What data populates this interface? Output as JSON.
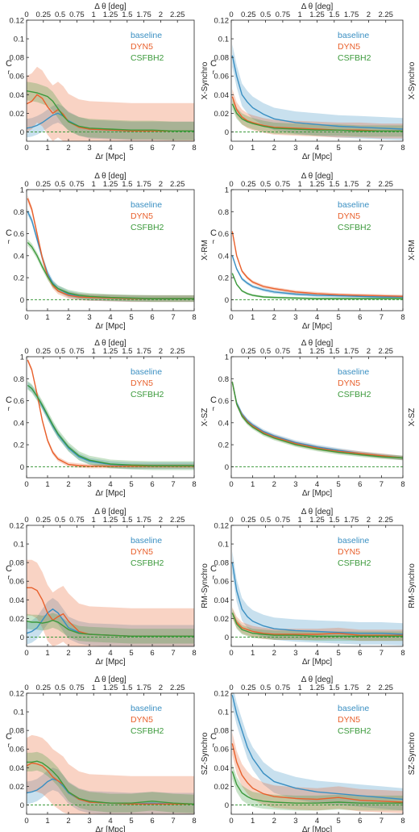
{
  "colors": {
    "baseline": "#3a8fc2",
    "DYN5": "#e8602c",
    "CSFBH2": "#3c9a3c",
    "axis": "#262626",
    "grid_band_alpha": 0.28
  },
  "common": {
    "xlabel": "Δr [Mpc]",
    "top_xlabel": "Δ θ [deg]",
    "ylabel": "C",
    "ylabel_sub": "r",
    "xticks": [
      "0",
      "1",
      "2",
      "3",
      "4",
      "5",
      "6",
      "7",
      "8"
    ],
    "top_ticks": [
      "0",
      "0.25",
      "0.5",
      "0.75",
      "1",
      "1.25",
      "1.5",
      "1.75",
      "2",
      "2.25"
    ],
    "legend": [
      "baseline",
      "DYN5",
      "CSFBH2"
    ]
  },
  "chart_data": [
    {
      "type": "line",
      "panel": "1-left",
      "right_label": "",
      "xlim": [
        0,
        8
      ],
      "ylim": [
        -0.01,
        0.12
      ],
      "yticks": [
        "0",
        "0.02",
        "0.04",
        "0.06",
        "0.08",
        "0.1",
        "0.12"
      ],
      "ytick_values": [
        0,
        0.02,
        0.04,
        0.06,
        0.08,
        0.1,
        0.12
      ],
      "x": [
        0,
        0.25,
        0.5,
        0.75,
        1.0,
        1.25,
        1.5,
        1.75,
        2.0,
        2.5,
        3.0,
        4.0,
        5.0,
        6.0,
        7.0,
        8.0
      ],
      "series": [
        {
          "name": "baseline",
          "values": [
            0.004,
            0.005,
            0.007,
            0.01,
            0.014,
            0.018,
            0.02,
            0.017,
            0.012,
            0.006,
            0.003,
            0.002,
            0.001,
            0.001,
            0.001,
            0.001
          ],
          "band": 0.01
        },
        {
          "name": "DYN5",
          "values": [
            0.03,
            0.033,
            0.04,
            0.036,
            0.027,
            0.02,
            0.024,
            0.019,
            0.011,
            0.005,
            0.003,
            0.002,
            0.001,
            0.001,
            0.001,
            0.001
          ],
          "band": 0.03
        },
        {
          "name": "CSFBH2",
          "values": [
            0.044,
            0.043,
            0.042,
            0.04,
            0.038,
            0.033,
            0.025,
            0.017,
            0.011,
            0.006,
            0.004,
            0.003,
            0.002,
            0.002,
            0.001,
            0.001
          ],
          "band": 0.01
        }
      ]
    },
    {
      "type": "line",
      "panel": "1-right",
      "right_label": "X-Synchro",
      "xlim": [
        0,
        8
      ],
      "ylim": [
        -0.01,
        0.12
      ],
      "yticks": [
        "0",
        "0.02",
        "0.04",
        "0.06",
        "0.08",
        "0.1",
        "0.12"
      ],
      "ytick_values": [
        0,
        0.02,
        0.04,
        0.06,
        0.08,
        0.1,
        0.12
      ],
      "x": [
        0.05,
        0.25,
        0.5,
        0.75,
        1.0,
        1.5,
        2.0,
        3.0,
        4.0,
        5.0,
        6.0,
        7.0,
        8.0
      ],
      "series": [
        {
          "name": "baseline",
          "values": [
            0.082,
            0.06,
            0.04,
            0.032,
            0.026,
            0.019,
            0.014,
            0.01,
            0.008,
            0.006,
            0.005,
            0.004,
            0.003
          ],
          "band": 0.012
        },
        {
          "name": "DYN5",
          "values": [
            0.038,
            0.024,
            0.016,
            0.012,
            0.01,
            0.007,
            0.005,
            0.004,
            0.003,
            0.002,
            0.002,
            0.001,
            0.001
          ],
          "band": 0.008
        },
        {
          "name": "CSFBH2",
          "values": [
            0.03,
            0.02,
            0.014,
            0.011,
            0.009,
            0.006,
            0.004,
            0.003,
            0.002,
            0.002,
            0.001,
            0.001,
            0.001
          ],
          "band": 0.006
        }
      ]
    },
    {
      "type": "line",
      "panel": "2-left",
      "right_label": "",
      "xlim": [
        0,
        8
      ],
      "ylim": [
        -0.1,
        1.0
      ],
      "yticks": [
        "0",
        "0.2",
        "0.4",
        "0.6",
        "0.8",
        "1"
      ],
      "ytick_values": [
        0,
        0.2,
        0.4,
        0.6,
        0.8,
        1.0
      ],
      "x": [
        0.05,
        0.25,
        0.5,
        0.75,
        1.0,
        1.25,
        1.5,
        2.0,
        2.5,
        3.0,
        4.0,
        5.0,
        6.0,
        7.0,
        8.0
      ],
      "series": [
        {
          "name": "baseline",
          "values": [
            0.8,
            0.72,
            0.55,
            0.38,
            0.24,
            0.15,
            0.1,
            0.05,
            0.03,
            0.02,
            0.015,
            0.01,
            0.01,
            0.01,
            0.01
          ],
          "band": 0.03
        },
        {
          "name": "DYN5",
          "values": [
            0.92,
            0.82,
            0.6,
            0.38,
            0.22,
            0.13,
            0.08,
            0.04,
            0.025,
            0.02,
            0.015,
            0.01,
            0.01,
            0.01,
            0.01
          ],
          "band": 0.03
        },
        {
          "name": "CSFBH2",
          "values": [
            0.52,
            0.48,
            0.4,
            0.3,
            0.21,
            0.14,
            0.1,
            0.06,
            0.04,
            0.03,
            0.02,
            0.015,
            0.01,
            0.01,
            0.01
          ],
          "band": 0.03
        }
      ]
    },
    {
      "type": "line",
      "panel": "2-right",
      "right_label": "X-RM",
      "xlim": [
        0,
        8
      ],
      "ylim": [
        -0.1,
        1.0
      ],
      "yticks": [
        "0",
        "0.2",
        "0.4",
        "0.6",
        "0.8",
        "1"
      ],
      "ytick_values": [
        0,
        0.2,
        0.4,
        0.6,
        0.8,
        1.0
      ],
      "x": [
        0.05,
        0.25,
        0.5,
        0.75,
        1.0,
        1.5,
        2.0,
        3.0,
        4.0,
        5.0,
        6.0,
        7.0,
        8.0
      ],
      "series": [
        {
          "name": "baseline",
          "values": [
            0.4,
            0.28,
            0.19,
            0.15,
            0.12,
            0.09,
            0.07,
            0.05,
            0.04,
            0.035,
            0.03,
            0.025,
            0.025
          ],
          "band": 0.015
        },
        {
          "name": "DYN5",
          "values": [
            0.62,
            0.4,
            0.26,
            0.2,
            0.16,
            0.12,
            0.1,
            0.07,
            0.055,
            0.045,
            0.04,
            0.035,
            0.03
          ],
          "band": 0.015
        },
        {
          "name": "CSFBH2",
          "values": [
            0.24,
            0.14,
            0.08,
            0.055,
            0.04,
            0.025,
            0.02,
            0.015,
            0.01,
            0.01,
            0.01,
            0.01,
            0.01
          ],
          "band": 0.01
        }
      ]
    },
    {
      "type": "line",
      "panel": "3-left",
      "right_label": "",
      "xlim": [
        0,
        8
      ],
      "ylim": [
        -0.1,
        1.0
      ],
      "yticks": [
        "0",
        "0.2",
        "0.4",
        "0.6",
        "0.8",
        "1"
      ],
      "ytick_values": [
        0,
        0.2,
        0.4,
        0.6,
        0.8,
        1.0
      ],
      "x": [
        0.05,
        0.25,
        0.5,
        0.75,
        1.0,
        1.25,
        1.5,
        2.0,
        2.5,
        3.0,
        4.0,
        5.0,
        6.0,
        7.0,
        8.0
      ],
      "series": [
        {
          "name": "baseline",
          "values": [
            0.74,
            0.71,
            0.64,
            0.55,
            0.46,
            0.37,
            0.29,
            0.17,
            0.09,
            0.05,
            0.02,
            0.01,
            0.01,
            0.01,
            0.01
          ],
          "band": 0.03
        },
        {
          "name": "DYN5",
          "values": [
            0.97,
            0.88,
            0.66,
            0.42,
            0.24,
            0.13,
            0.07,
            0.02,
            0.01,
            0.005,
            0.005,
            0.005,
            0.005,
            0.005,
            0.005
          ],
          "band": 0.02
        },
        {
          "name": "CSFBH2",
          "values": [
            0.74,
            0.71,
            0.64,
            0.56,
            0.47,
            0.38,
            0.3,
            0.18,
            0.1,
            0.06,
            0.025,
            0.015,
            0.01,
            0.01,
            0.01
          ],
          "band": 0.04
        }
      ]
    },
    {
      "type": "line",
      "panel": "3-right",
      "right_label": "X-SZ",
      "xlim": [
        0,
        8
      ],
      "ylim": [
        -0.1,
        1.0
      ],
      "yticks": [
        "0",
        "0.2",
        "0.4",
        "0.6",
        "0.8",
        "1"
      ],
      "ytick_values": [
        0,
        0.2,
        0.4,
        0.6,
        0.8,
        1.0
      ],
      "x": [
        0.05,
        0.25,
        0.5,
        0.75,
        1.0,
        1.5,
        2.0,
        3.0,
        4.0,
        5.0,
        6.0,
        7.0,
        8.0
      ],
      "series": [
        {
          "name": "baseline",
          "values": [
            0.77,
            0.58,
            0.48,
            0.42,
            0.38,
            0.32,
            0.28,
            0.22,
            0.18,
            0.15,
            0.12,
            0.1,
            0.08
          ],
          "band": 0.02
        },
        {
          "name": "DYN5",
          "values": [
            0.77,
            0.57,
            0.47,
            0.41,
            0.37,
            0.31,
            0.27,
            0.21,
            0.17,
            0.14,
            0.12,
            0.1,
            0.08
          ],
          "band": 0.02
        },
        {
          "name": "CSFBH2",
          "values": [
            0.77,
            0.57,
            0.46,
            0.4,
            0.36,
            0.3,
            0.26,
            0.2,
            0.16,
            0.13,
            0.11,
            0.09,
            0.08
          ],
          "band": 0.02
        }
      ]
    },
    {
      "type": "line",
      "panel": "4-left",
      "right_label": "",
      "xlim": [
        0,
        8
      ],
      "ylim": [
        -0.01,
        0.12
      ],
      "yticks": [
        "0",
        "0.02",
        "0.04",
        "0.06",
        "0.08",
        "0.1",
        "0.12"
      ],
      "ytick_values": [
        0,
        0.02,
        0.04,
        0.06,
        0.08,
        0.1,
        0.12
      ],
      "x": [
        0,
        0.25,
        0.5,
        0.75,
        1.0,
        1.25,
        1.5,
        1.75,
        2.0,
        2.5,
        3.0,
        4.0,
        5.0,
        6.0,
        7.0,
        8.0
      ],
      "series": [
        {
          "name": "baseline",
          "values": [
            0.004,
            0.006,
            0.01,
            0.018,
            0.026,
            0.03,
            0.026,
            0.018,
            0.01,
            0.005,
            0.003,
            0.002,
            0.001,
            0.001,
            0.001,
            0.001
          ],
          "band": 0.012
        },
        {
          "name": "DYN5",
          "values": [
            0.053,
            0.053,
            0.05,
            0.04,
            0.026,
            0.018,
            0.022,
            0.025,
            0.017,
            0.006,
            0.003,
            0.002,
            0.001,
            0.001,
            0.001,
            0.001
          ],
          "band": 0.03
        },
        {
          "name": "CSFBH2",
          "values": [
            0.017,
            0.016,
            0.016,
            0.015,
            0.016,
            0.018,
            0.016,
            0.012,
            0.008,
            0.004,
            0.003,
            0.002,
            0.001,
            0.001,
            0.001,
            0.001
          ],
          "band": 0.008
        }
      ]
    },
    {
      "type": "line",
      "panel": "4-right",
      "right_label": "RM-Synchro",
      "xlim": [
        0,
        8
      ],
      "ylim": [
        -0.01,
        0.12
      ],
      "yticks": [
        "0",
        "0.02",
        "0.04",
        "0.06",
        "0.08",
        "0.1",
        "0.12"
      ],
      "ytick_values": [
        0,
        0.02,
        0.04,
        0.06,
        0.08,
        0.1,
        0.12
      ],
      "x": [
        0.05,
        0.25,
        0.5,
        0.75,
        1.0,
        1.5,
        2.0,
        3.0,
        4.0,
        5.0,
        6.0,
        7.0,
        8.0
      ],
      "series": [
        {
          "name": "baseline",
          "values": [
            0.08,
            0.05,
            0.03,
            0.022,
            0.017,
            0.012,
            0.009,
            0.007,
            0.006,
            0.005,
            0.004,
            0.004,
            0.003
          ],
          "band": 0.012
        },
        {
          "name": "DYN5",
          "values": [
            0.026,
            0.016,
            0.01,
            0.008,
            0.006,
            0.004,
            0.003,
            0.003,
            0.003,
            0.004,
            0.002,
            0.002,
            0.002
          ],
          "band": 0.006
        },
        {
          "name": "CSFBH2",
          "values": [
            0.026,
            0.014,
            0.008,
            0.006,
            0.004,
            0.003,
            0.002,
            0.002,
            0.001,
            0.001,
            0.001,
            0.001,
            0.001
          ],
          "band": 0.005
        }
      ]
    },
    {
      "type": "line",
      "panel": "5-left",
      "right_label": "",
      "xlim": [
        0,
        8
      ],
      "ylim": [
        -0.01,
        0.12
      ],
      "yticks": [
        "0",
        "0.02",
        "0.04",
        "0.06",
        "0.08",
        "0.1",
        "0.12"
      ],
      "ytick_values": [
        0,
        0.02,
        0.04,
        0.06,
        0.08,
        0.1,
        0.12
      ],
      "x": [
        0,
        0.25,
        0.5,
        0.75,
        1.0,
        1.25,
        1.5,
        1.75,
        2.0,
        2.5,
        3.0,
        4.0,
        5.0,
        6.0,
        7.0,
        8.0
      ],
      "series": [
        {
          "name": "baseline",
          "values": [
            0.013,
            0.014,
            0.016,
            0.02,
            0.025,
            0.028,
            0.026,
            0.02,
            0.013,
            0.006,
            0.003,
            0.002,
            0.001,
            0.002,
            0.001,
            0.001
          ],
          "band": 0.012
        },
        {
          "name": "DYN5",
          "values": [
            0.042,
            0.045,
            0.044,
            0.042,
            0.037,
            0.03,
            0.026,
            0.022,
            0.014,
            0.006,
            0.003,
            0.002,
            0.001,
            0.001,
            0.001,
            0.001
          ],
          "band": 0.03
        },
        {
          "name": "CSFBH2",
          "values": [
            0.046,
            0.046,
            0.047,
            0.045,
            0.041,
            0.036,
            0.03,
            0.022,
            0.014,
            0.007,
            0.004,
            0.002,
            0.002,
            0.004,
            0.002,
            0.001
          ],
          "band": 0.01
        }
      ]
    },
    {
      "type": "line",
      "panel": "5-right",
      "right_label": "SZ-Synchro",
      "xlim": [
        0,
        8
      ],
      "ylim": [
        -0.01,
        0.12
      ],
      "yticks": [
        "0",
        "0.02",
        "0.04",
        "0.06",
        "0.08",
        "0.1",
        "0.12"
      ],
      "ytick_values": [
        0,
        0.02,
        0.04,
        0.06,
        0.08,
        0.1,
        0.12
      ],
      "x": [
        0.05,
        0.25,
        0.5,
        0.75,
        1.0,
        1.5,
        2.0,
        3.0,
        4.0,
        5.0,
        6.0,
        7.0,
        8.0
      ],
      "series": [
        {
          "name": "baseline",
          "values": [
            0.118,
            0.098,
            0.08,
            0.062,
            0.05,
            0.034,
            0.025,
            0.018,
            0.014,
            0.012,
            0.01,
            0.008,
            0.006
          ],
          "band": 0.012
        },
        {
          "name": "DYN5",
          "values": [
            0.066,
            0.046,
            0.032,
            0.024,
            0.018,
            0.012,
            0.009,
            0.007,
            0.006,
            0.008,
            0.005,
            0.004,
            0.003
          ],
          "band": 0.012
        },
        {
          "name": "CSFBH2",
          "values": [
            0.036,
            0.022,
            0.013,
            0.009,
            0.006,
            0.004,
            0.003,
            0.002,
            0.002,
            0.003,
            0.002,
            0.002,
            0.002
          ],
          "band": 0.008
        }
      ]
    }
  ]
}
